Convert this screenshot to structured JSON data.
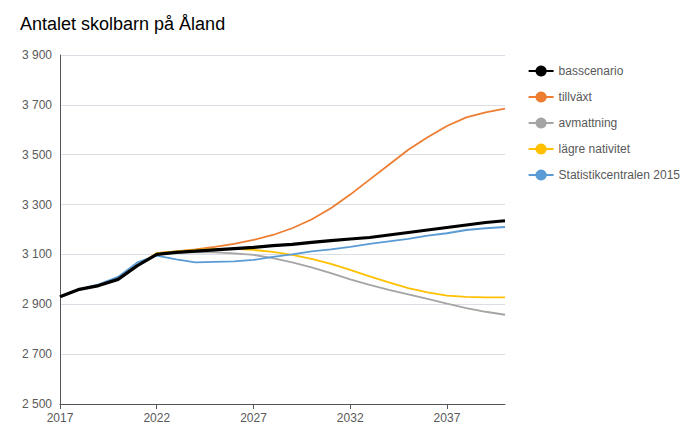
{
  "chart_data": {
    "type": "line",
    "title": "Antalet skolbarn på Åland",
    "x": [
      2017,
      2018,
      2019,
      2020,
      2021,
      2022,
      2023,
      2024,
      2025,
      2026,
      2027,
      2028,
      2029,
      2030,
      2031,
      2032,
      2033,
      2034,
      2035,
      2036,
      2037,
      2038,
      2039,
      2040
    ],
    "series": [
      {
        "name": "basscenario",
        "color": "#000000",
        "values": [
          2930,
          2960,
          2975,
          3000,
          3055,
          3100,
          3108,
          3113,
          3118,
          3123,
          3128,
          3135,
          3140,
          3148,
          3155,
          3162,
          3168,
          3178,
          3188,
          3198,
          3208,
          3218,
          3228,
          3235
        ]
      },
      {
        "name": "tillväxt",
        "color": "#ED7D31",
        "values": [
          2930,
          2960,
          2975,
          3000,
          3055,
          3105,
          3112,
          3120,
          3130,
          3142,
          3158,
          3178,
          3205,
          3240,
          3285,
          3340,
          3400,
          3460,
          3520,
          3570,
          3615,
          3650,
          3670,
          3685
        ]
      },
      {
        "name": "avmattning",
        "color": "#A5A5A5",
        "values": [
          2930,
          2960,
          2975,
          3000,
          3055,
          3100,
          3106,
          3108,
          3108,
          3104,
          3098,
          3085,
          3068,
          3048,
          3025,
          3000,
          2978,
          2958,
          2940,
          2922,
          2903,
          2885,
          2870,
          2858
        ]
      },
      {
        "name": "lägre nativitet",
        "color": "#FFC000",
        "values": [
          2930,
          2960,
          2975,
          3000,
          3055,
          3105,
          3112,
          3118,
          3122,
          3122,
          3118,
          3110,
          3098,
          3082,
          3062,
          3038,
          3012,
          2988,
          2965,
          2948,
          2935,
          2930,
          2928,
          2928
        ]
      },
      {
        "name": "Statistikcentralen 2015",
        "color": "#5B9BD5",
        "values": [
          2930,
          2960,
          2980,
          3010,
          3068,
          3095,
          3080,
          3068,
          3070,
          3072,
          3078,
          3090,
          3100,
          3112,
          3120,
          3130,
          3142,
          3152,
          3162,
          3175,
          3185,
          3198,
          3205,
          3210
        ]
      }
    ],
    "xlim": [
      2017,
      2040
    ],
    "xticks": [
      2017,
      2022,
      2027,
      2032,
      2037
    ],
    "ylim": [
      2500,
      3900
    ],
    "yticks": [
      {
        "value": 2500,
        "label": "2 500"
      },
      {
        "value": 2700,
        "label": "2 700"
      },
      {
        "value": 2900,
        "label": "2 900"
      },
      {
        "value": 3100,
        "label": "3 100"
      },
      {
        "value": 3300,
        "label": "3 300"
      },
      {
        "value": 3500,
        "label": "3 500"
      },
      {
        "value": 3700,
        "label": "3 700"
      },
      {
        "value": 3900,
        "label": "3 900"
      }
    ],
    "grid": true,
    "legend": "right"
  }
}
